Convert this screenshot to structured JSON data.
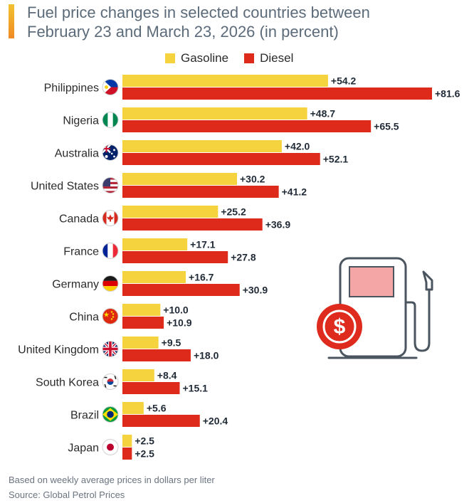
{
  "chart_data": {
    "type": "bar",
    "orientation": "horizontal",
    "title": "Fuel price changes in selected countries between\nFebruary 23 and March 23, 2026 (in percent)",
    "categories": [
      "Philippines",
      "Nigeria",
      "Australia",
      "United States",
      "Canada",
      "France",
      "Germany",
      "China",
      "United Kingdom",
      "South Korea",
      "Brazil",
      "Japan"
    ],
    "series": [
      {
        "name": "Gasoline",
        "color": "#f5d33f",
        "values": [
          54.2,
          48.7,
          42.0,
          30.2,
          25.2,
          17.1,
          16.7,
          10.0,
          9.5,
          8.4,
          5.6,
          2.5
        ],
        "labels": [
          "+54.2",
          "+48.7",
          "+42.0",
          "+30.2",
          "+25.2",
          "+17.1",
          "+16.7",
          "+10.0",
          "+9.5",
          "+8.4",
          "+5.6",
          "+2.5"
        ]
      },
      {
        "name": "Diesel",
        "color": "#de2a1b",
        "values": [
          81.6,
          65.5,
          52.1,
          41.2,
          36.9,
          27.8,
          30.9,
          10.9,
          18.0,
          15.1,
          20.4,
          2.5
        ],
        "labels": [
          "+81.6",
          "+65.5",
          "+52.1",
          "+41.2",
          "+36.9",
          "+27.8",
          "+30.9",
          "+10.9",
          "+18.0",
          "+15.1",
          "+20.4",
          "+2.5"
        ]
      }
    ],
    "xlim": [
      0,
      81.6
    ],
    "grid": false,
    "legend": "top-center"
  },
  "flags": [
    "philippines-flag-icon",
    "nigeria-flag-icon",
    "australia-flag-icon",
    "united-states-flag-icon",
    "canada-flag-icon",
    "france-flag-icon",
    "germany-flag-icon",
    "china-flag-icon",
    "united-kingdom-flag-icon",
    "south-korea-flag-icon",
    "brazil-flag-icon",
    "japan-flag-icon"
  ],
  "illustration": "fuel-pump-dollar-icon",
  "footer": {
    "note": "Based on weekly average prices in dollars per liter",
    "source": "Source: Global Petrol Prices"
  }
}
